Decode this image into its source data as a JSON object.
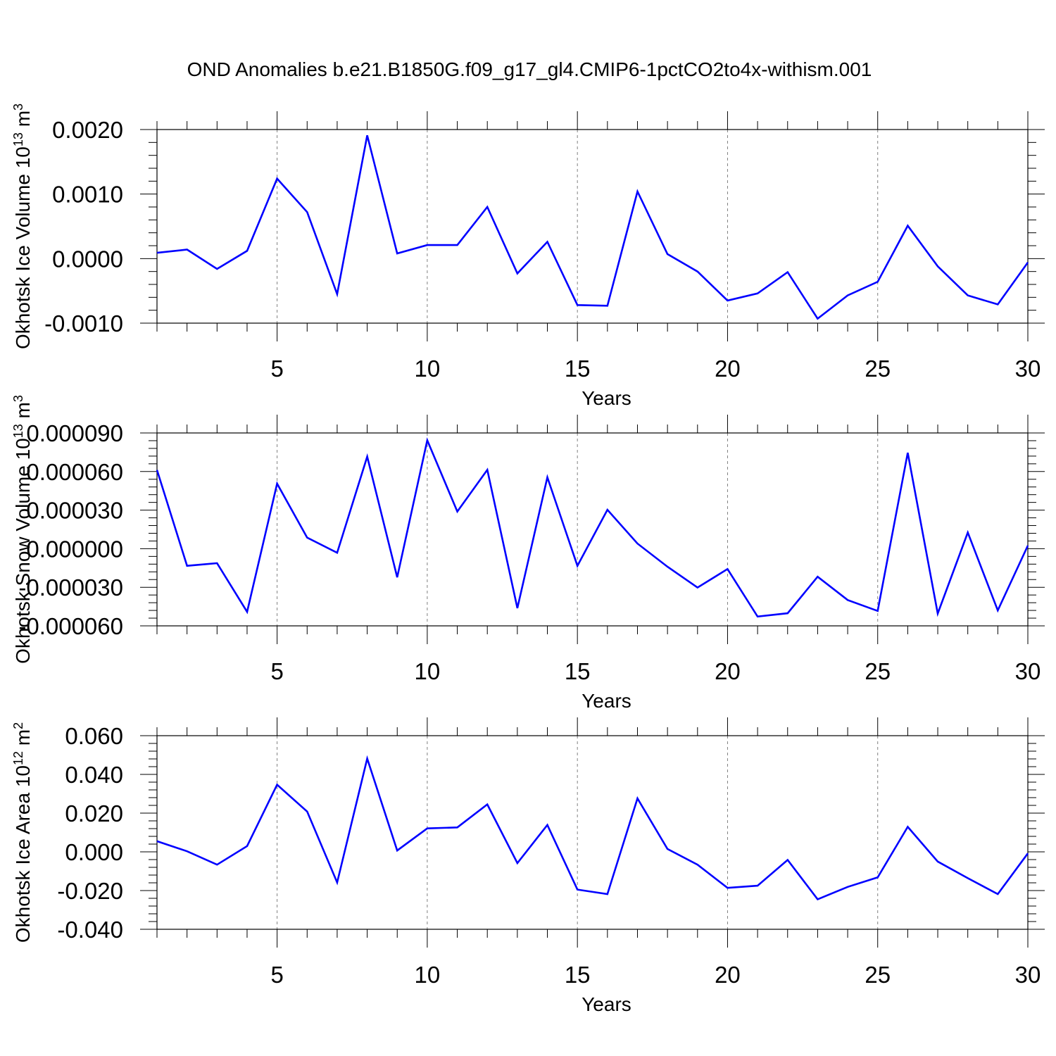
{
  "figure_title": "OND Anomalies b.e21.B1850G.f09_g17_gl4.CMIP6-1pctCO2to4x-withism.001",
  "colors": {
    "line": "#0000ff",
    "axis": "#000000",
    "grid": "#808080",
    "background": "#ffffff"
  },
  "chart_data": [
    {
      "type": "line",
      "ylabel": "Okhotsk Ice Volume 10",
      "ylabel_sup": "13",
      "ylabel_unit": "m",
      "ylabel_unit_sup": "3",
      "xlabel": "Years",
      "xlim": [
        1,
        30
      ],
      "ylim": [
        -0.001,
        0.002
      ],
      "xticks": [
        5,
        10,
        15,
        20,
        25,
        30
      ],
      "yticks": [
        -0.001,
        0.0,
        0.001,
        0.002
      ],
      "ytick_labels": [
        "-0.0010",
        "0.0000",
        "0.0010",
        "0.0020"
      ],
      "grid": "vertical dashed at major x ticks",
      "x": [
        1,
        2,
        3,
        4,
        5,
        6,
        7,
        8,
        9,
        10,
        11,
        12,
        13,
        14,
        15,
        16,
        17,
        18,
        19,
        20,
        21,
        22,
        23,
        24,
        25,
        26,
        27,
        28,
        29,
        30
      ],
      "values": [
        9e-05,
        0.00014,
        -0.00016,
        0.00012,
        0.00124,
        0.00072,
        -0.00055,
        0.00191,
        8e-05,
        0.00021,
        0.00021,
        0.0008,
        -0.00023,
        0.00026,
        -0.00072,
        -0.00073,
        0.00104,
        7e-05,
        -0.0002,
        -0.00065,
        -0.00054,
        -0.00021,
        -0.00093,
        -0.00057,
        -0.00036,
        0.00051,
        -0.00012,
        -0.00057,
        -0.00071,
        -6e-05
      ]
    },
    {
      "type": "line",
      "ylabel": "Okhotsk Snow Volume 10",
      "ylabel_sup": "13",
      "ylabel_unit": "m",
      "ylabel_unit_sup": "3",
      "xlabel": "Years",
      "xlim": [
        1,
        30
      ],
      "ylim": [
        -6e-05,
        9e-05
      ],
      "xticks": [
        5,
        10,
        15,
        20,
        25,
        30
      ],
      "yticks": [
        -6e-05,
        -3e-05,
        0.0,
        3e-05,
        6e-05,
        9e-05
      ],
      "ytick_labels": [
        "-0.000060",
        "-0.000030",
        "0.000000",
        "0.000030",
        "0.000060",
        "0.000090"
      ],
      "grid": "vertical dashed at major x ticks",
      "x": [
        1,
        2,
        3,
        4,
        5,
        6,
        7,
        8,
        9,
        10,
        11,
        12,
        13,
        14,
        15,
        16,
        17,
        18,
        19,
        20,
        21,
        22,
        23,
        24,
        25,
        26,
        27,
        28,
        29,
        30
      ],
      "values": [
        6.12e-05,
        -1.33e-05,
        -1.13e-05,
        -4.91e-05,
        5.06e-05,
        8.6e-06,
        -3.2e-06,
        7.16e-05,
        -2.22e-05,
        8.43e-05,
        2.89e-05,
        6.13e-05,
        -4.62e-05,
        5.55e-05,
        -1.33e-05,
        3.03e-05,
        4e-06,
        -1.4e-05,
        -3.02e-05,
        -1.58e-05,
        -5.28e-05,
        -5.02e-05,
        -2.18e-05,
        -3.99e-05,
        -4.84e-05,
        7.46e-05,
        -5.04e-05,
        1.26e-05,
        -4.8e-05,
        2.4e-06
      ]
    },
    {
      "type": "line",
      "ylabel": "Okhotsk Ice Area 10",
      "ylabel_sup": "12",
      "ylabel_unit": "m",
      "ylabel_unit_sup": "2",
      "xlabel": "Years",
      "xlim": [
        1,
        30
      ],
      "ylim": [
        -0.04,
        0.06
      ],
      "xticks": [
        5,
        10,
        15,
        20,
        25,
        30
      ],
      "yticks": [
        -0.04,
        -0.02,
        0.0,
        0.02,
        0.04,
        0.06
      ],
      "ytick_labels": [
        "-0.040",
        "-0.020",
        "0.000",
        "0.020",
        "0.040",
        "0.060"
      ],
      "grid": "vertical dashed at major x ticks",
      "x": [
        1,
        2,
        3,
        4,
        5,
        6,
        7,
        8,
        9,
        10,
        11,
        12,
        13,
        14,
        15,
        16,
        17,
        18,
        19,
        20,
        21,
        22,
        23,
        24,
        25,
        26,
        27,
        28,
        29,
        30
      ],
      "values": [
        0.0055,
        0.0003,
        -0.0066,
        0.003,
        0.0347,
        0.0208,
        -0.0158,
        0.0482,
        0.0007,
        0.0121,
        0.0126,
        0.0245,
        -0.0058,
        0.0139,
        -0.0195,
        -0.0218,
        0.0276,
        0.0015,
        -0.0066,
        -0.0186,
        -0.0175,
        -0.0042,
        -0.0245,
        -0.0181,
        -0.0132,
        0.0129,
        -0.005,
        -0.0136,
        -0.0218,
        -0.0008
      ]
    }
  ]
}
